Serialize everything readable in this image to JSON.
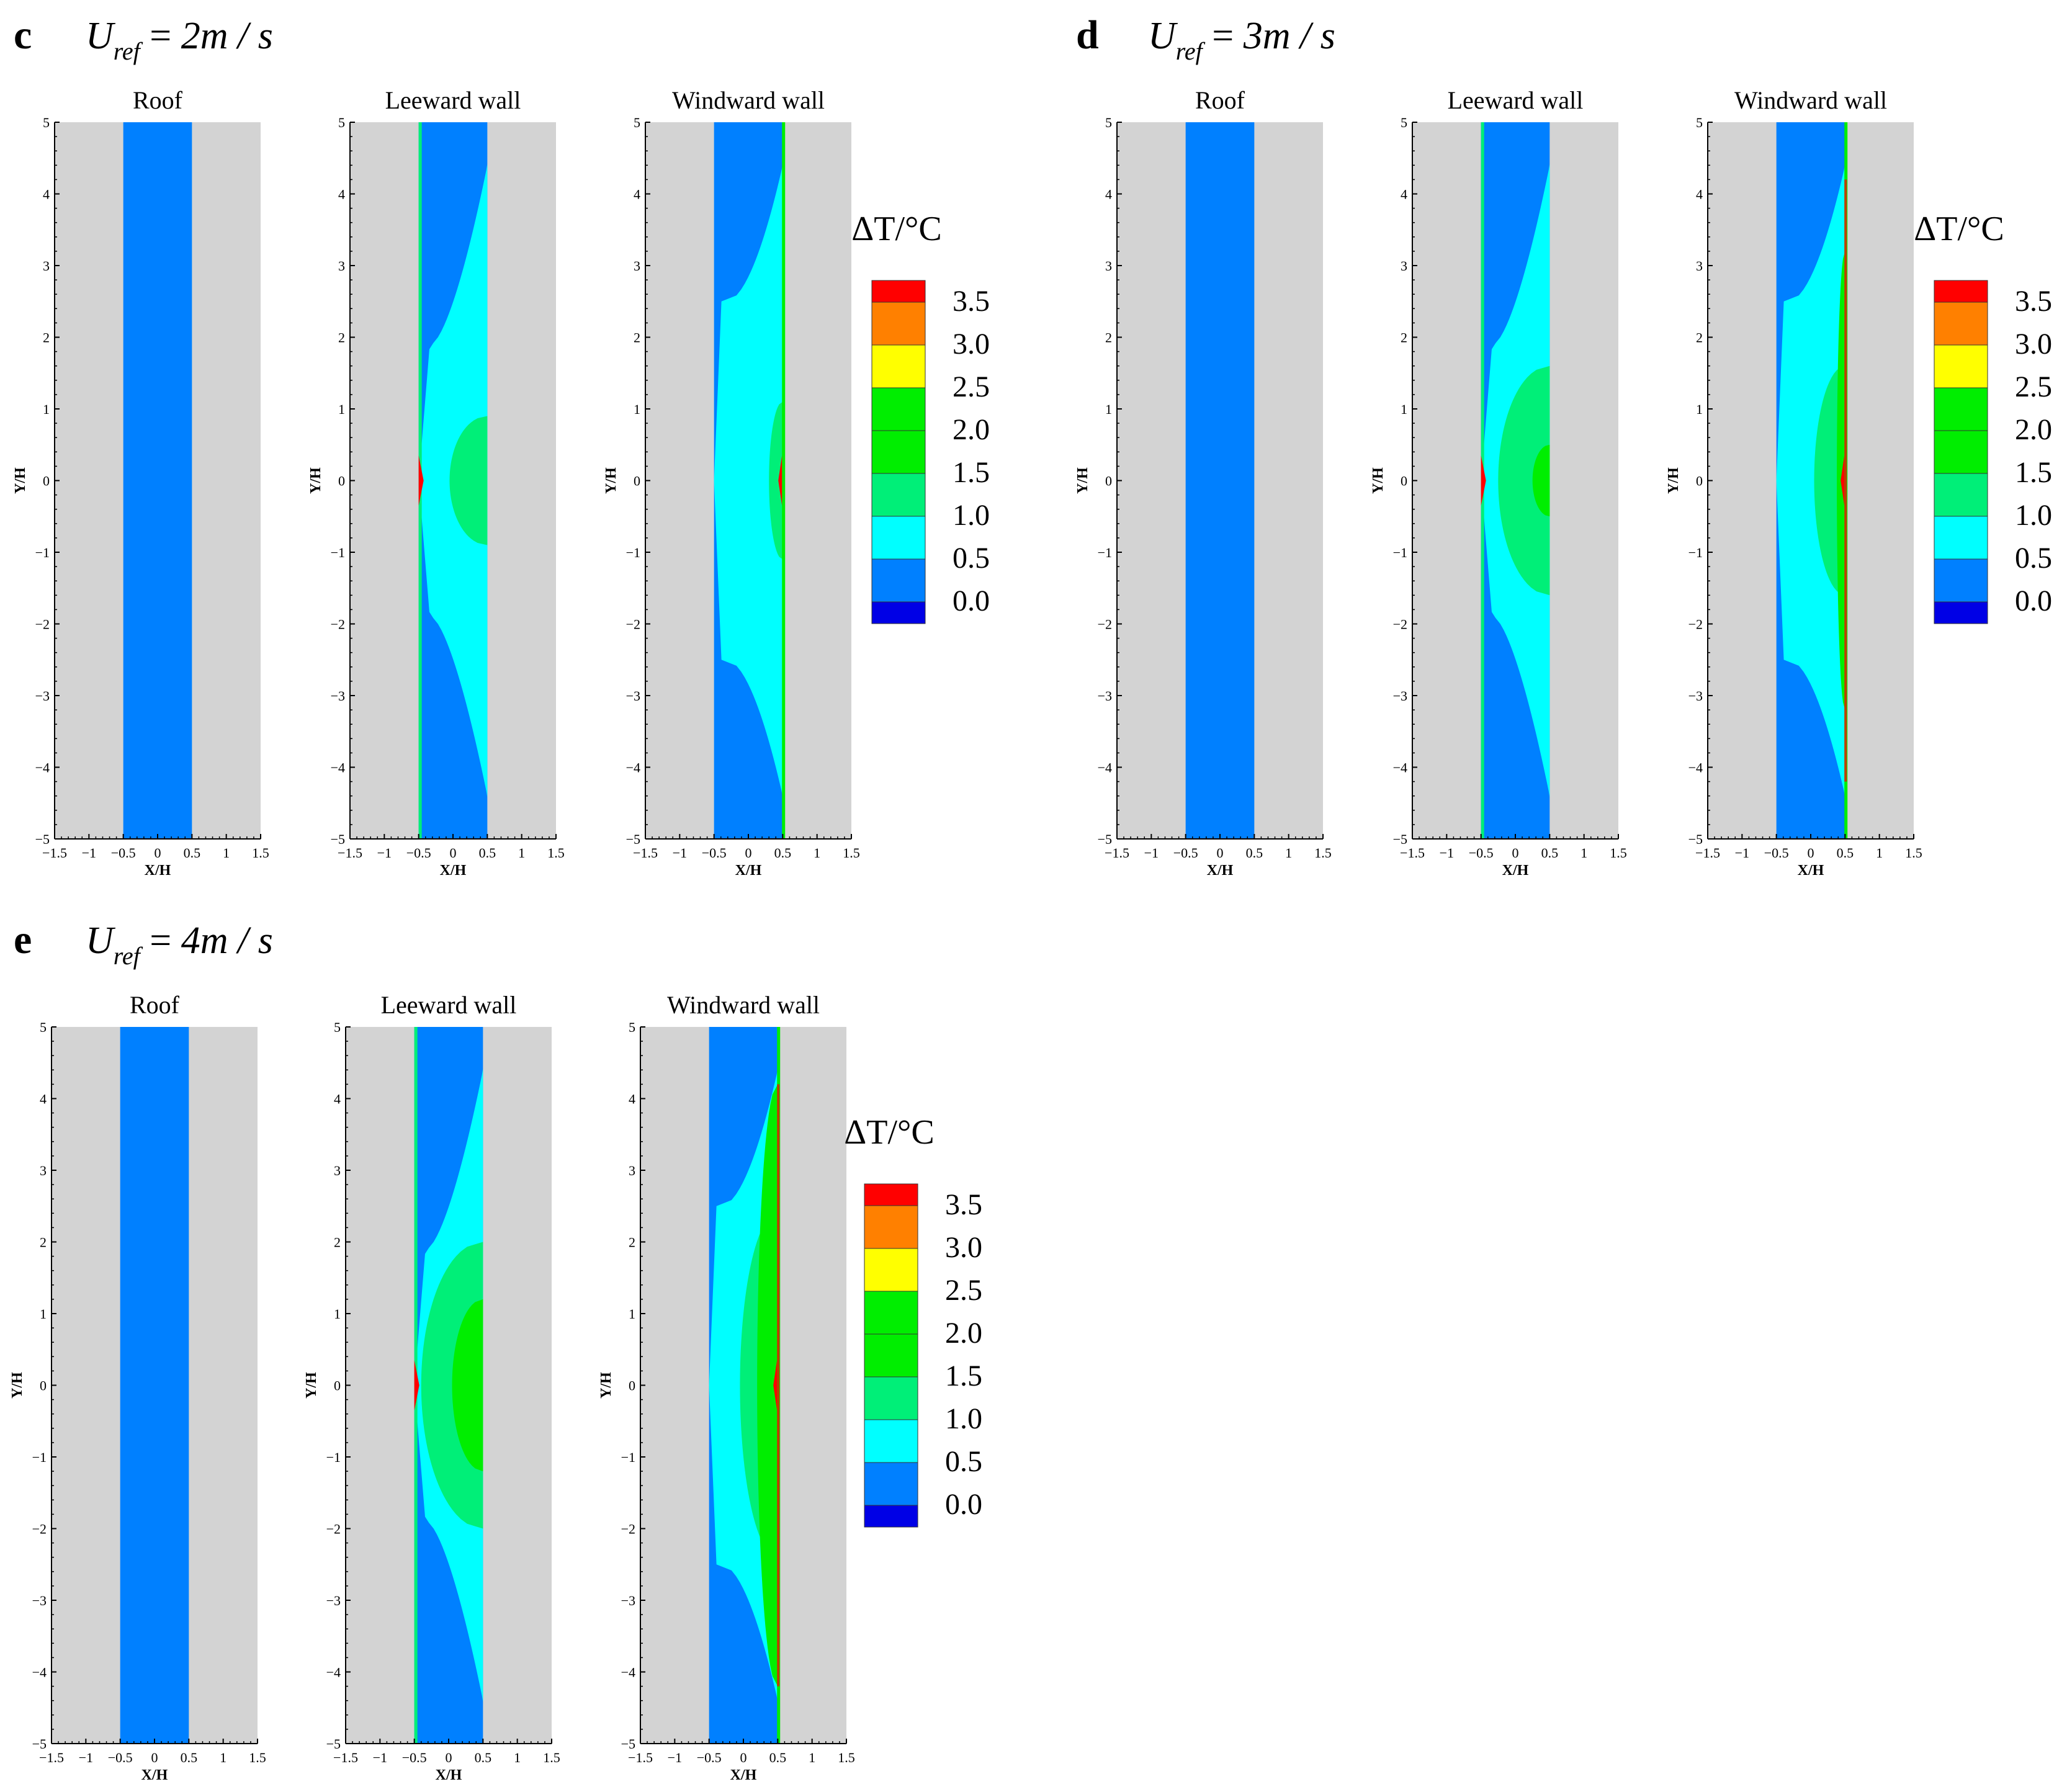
{
  "colors": {
    "background": "#d3d3d3",
    "white": "#ffffff",
    "level_0_0": "#0000e6",
    "level_0_5": "#0080ff",
    "level_1_0": "#00ffff",
    "level_1_5": "#00ef78",
    "level_2_0": "#00ee00",
    "level_2_5": "#00ee00",
    "level_3_0": "#ffff00",
    "level_3_5": "#ff8000",
    "level_4_0": "#ff0000"
  },
  "chart_data": [
    {
      "panel": "c",
      "velocity_text": "2m / s",
      "type": "heatmap",
      "legend": {
        "title": "ΔT/°C",
        "levels": [
          "3.5",
          "3.0",
          "2.5",
          "2.0",
          "1.5",
          "1.0",
          "0.5",
          "0.0"
        ]
      },
      "subplots": [
        {
          "title": "Roof",
          "xlabel": "X/H",
          "ylabel": "Y/H",
          "xlim": [
            -1.5,
            1.5
          ],
          "ylim": [
            -5,
            5
          ],
          "xticks": [
            "−1.5",
            "−1",
            "−0.5",
            "0",
            "0.5",
            "1",
            "1.5"
          ],
          "yticks": [
            "5",
            "4",
            "3",
            "2",
            "1",
            "0",
            "−1",
            "−2",
            "−3",
            "−4",
            "−5"
          ],
          "field": "roof"
        },
        {
          "title": "Leeward wall",
          "xlabel": "X/H",
          "ylabel": "Y/H",
          "xlim": [
            -1.5,
            1.5
          ],
          "ylim": [
            -5,
            5
          ],
          "xticks": [
            "−1.5",
            "−1",
            "−0.5",
            "0",
            "0.5",
            "1",
            "1.5"
          ],
          "yticks": [
            "5",
            "4",
            "3",
            "2",
            "1",
            "0",
            "−1",
            "−2",
            "−3",
            "−4",
            "−5"
          ],
          "field": "leeward",
          "intensity": 1
        },
        {
          "title": "Windward wall",
          "xlabel": "X/H",
          "ylabel": "Y/H",
          "xlim": [
            -1.5,
            1.5
          ],
          "ylim": [
            -5,
            5
          ],
          "xticks": [
            "−1.5",
            "−1",
            "−0.5",
            "0",
            "0.5",
            "1",
            "1.5"
          ],
          "yticks": [
            "5",
            "4",
            "3",
            "2",
            "1",
            "0",
            "−1",
            "−2",
            "−3",
            "−4",
            "−5"
          ],
          "field": "windward",
          "intensity": 1
        }
      ]
    },
    {
      "panel": "d",
      "velocity_text": "3m / s",
      "type": "heatmap",
      "legend": {
        "title": "ΔT/°C",
        "levels": [
          "3.5",
          "3.0",
          "2.5",
          "2.0",
          "1.5",
          "1.0",
          "0.5",
          "0.0"
        ]
      },
      "subplots": [
        {
          "title": "Roof",
          "xlabel": "X/H",
          "ylabel": "Y/H",
          "xlim": [
            -1.5,
            1.5
          ],
          "ylim": [
            -5,
            5
          ],
          "xticks": [
            "−1.5",
            "−1",
            "−0.5",
            "0",
            "0.5",
            "1",
            "1.5"
          ],
          "yticks": [
            "5",
            "4",
            "3",
            "2",
            "1",
            "0",
            "−1",
            "−2",
            "−3",
            "−4",
            "−5"
          ],
          "field": "roof"
        },
        {
          "title": "Leeward wall",
          "xlabel": "X/H",
          "ylabel": "Y/H",
          "xlim": [
            -1.5,
            1.5
          ],
          "ylim": [
            -5,
            5
          ],
          "xticks": [
            "−1.5",
            "−1",
            "−0.5",
            "0",
            "0.5",
            "1",
            "1.5"
          ],
          "yticks": [
            "5",
            "4",
            "3",
            "2",
            "1",
            "0",
            "−1",
            "−2",
            "−3",
            "−4",
            "−5"
          ],
          "field": "leeward",
          "intensity": 2
        },
        {
          "title": "Windward wall",
          "xlabel": "X/H",
          "ylabel": "Y/H",
          "xlim": [
            -1.5,
            1.5
          ],
          "ylim": [
            -5,
            5
          ],
          "xticks": [
            "−1.5",
            "−1",
            "−0.5",
            "0",
            "0.5",
            "1",
            "1.5"
          ],
          "yticks": [
            "5",
            "4",
            "3",
            "2",
            "1",
            "0",
            "−1",
            "−2",
            "−3",
            "−4",
            "−5"
          ],
          "field": "windward",
          "intensity": 2
        }
      ]
    },
    {
      "panel": "e",
      "velocity_text": "4m / s",
      "type": "heatmap",
      "legend": {
        "title": "ΔT/°C",
        "levels": [
          "3.5",
          "3.0",
          "2.5",
          "2.0",
          "1.5",
          "1.0",
          "0.5",
          "0.0"
        ]
      },
      "subplots": [
        {
          "title": "Roof",
          "xlabel": "X/H",
          "ylabel": "Y/H",
          "xlim": [
            -1.5,
            1.5
          ],
          "ylim": [
            -5,
            5
          ],
          "xticks": [
            "−1.5",
            "−1",
            "−0.5",
            "0",
            "0.5",
            "1",
            "1.5"
          ],
          "yticks": [
            "5",
            "4",
            "3",
            "2",
            "1",
            "0",
            "−1",
            "−2",
            "−3",
            "−4",
            "−5"
          ],
          "field": "roof"
        },
        {
          "title": "Leeward wall",
          "xlabel": "X/H",
          "ylabel": "Y/H",
          "xlim": [
            -1.5,
            1.5
          ],
          "ylim": [
            -5,
            5
          ],
          "xticks": [
            "−1.5",
            "−1",
            "−0.5",
            "0",
            "0.5",
            "1",
            "1.5"
          ],
          "yticks": [
            "5",
            "4",
            "3",
            "2",
            "1",
            "0",
            "−1",
            "−2",
            "−3",
            "−4",
            "−5"
          ],
          "field": "leeward",
          "intensity": 3
        },
        {
          "title": "Windward wall",
          "xlabel": "X/H",
          "ylabel": "Y/H",
          "xlim": [
            -1.5,
            1.5
          ],
          "ylim": [
            -5,
            5
          ],
          "xticks": [
            "−1.5",
            "−1",
            "−0.5",
            "0",
            "0.5",
            "1",
            "1.5"
          ],
          "yticks": [
            "5",
            "4",
            "3",
            "2",
            "1",
            "0",
            "−1",
            "−2",
            "−3",
            "−4",
            "−5"
          ],
          "field": "windward",
          "intensity": 3
        }
      ]
    }
  ]
}
